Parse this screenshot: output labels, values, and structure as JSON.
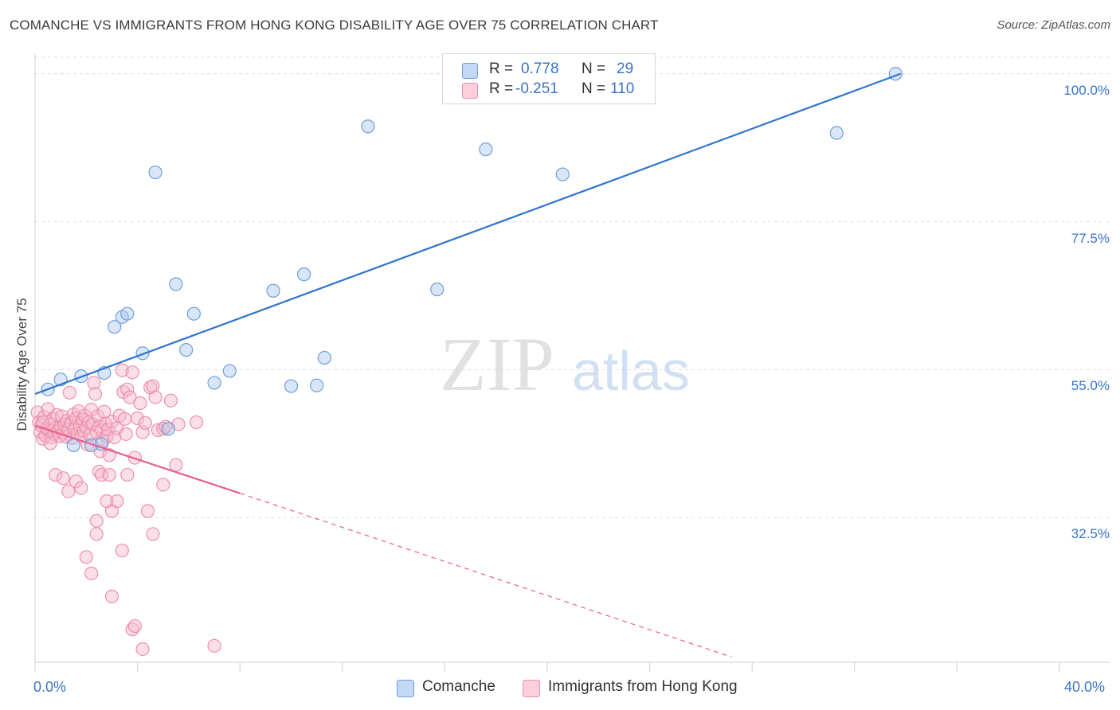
{
  "header": {
    "title": "COMANCHE VS IMMIGRANTS FROM HONG KONG DISABILITY AGE OVER 75 CORRELATION CHART",
    "source": "Source: ZipAtlas.com"
  },
  "watermark": {
    "zip": "ZIP",
    "atlas": "atlas"
  },
  "legend": {
    "r_label": "R =",
    "n_label": "N =",
    "rows": [
      {
        "r": "0.778",
        "n": "29"
      },
      {
        "r": "-0.251",
        "n": "110"
      }
    ]
  },
  "colors": {
    "comanche_fill": "#aac8f0",
    "comanche_stroke": "#6f9fd8",
    "comanche_line": "#2f74d0",
    "hk_fill": "#f7b9cb",
    "hk_stroke": "#ec8fab",
    "hk_line": "#e8608e",
    "grid": "#dddddd",
    "axis_text": "#3a73c8"
  },
  "chart_data": {
    "type": "scatter",
    "title": "COMANCHE VS IMMIGRANTS FROM HONG KONG DISABILITY AGE OVER 75 CORRELATION CHART",
    "xlabel": "",
    "ylabel": "Disability Age Over 75",
    "x_tick_labels": [
      "0.0%",
      "40.0%"
    ],
    "y_tick_labels": [
      "100.0%",
      "77.5%",
      "55.0%",
      "32.5%"
    ],
    "xlim": [
      0,
      40
    ],
    "ylim": [
      10.5,
      102.5
    ],
    "grid": true,
    "series": [
      {
        "name": "Comanche",
        "R": 0.778,
        "N": 29,
        "trend": {
          "x": [
            0,
            33.8
          ],
          "y": [
            51.3,
            100.0
          ],
          "dashed_to": null
        },
        "points": [
          [
            0.5,
            52.0
          ],
          [
            1.0,
            53.5
          ],
          [
            1.8,
            54.0
          ],
          [
            2.7,
            54.5
          ],
          [
            3.1,
            61.5
          ],
          [
            3.4,
            63.0
          ],
          [
            3.6,
            63.5
          ],
          [
            4.2,
            57.5
          ],
          [
            4.7,
            85.0
          ],
          [
            5.2,
            46.0
          ],
          [
            5.5,
            68.0
          ],
          [
            5.9,
            58.0
          ],
          [
            6.2,
            63.5
          ],
          [
            7.0,
            53.0
          ],
          [
            7.6,
            54.8
          ],
          [
            9.3,
            67.0
          ],
          [
            10.0,
            52.5
          ],
          [
            10.5,
            69.5
          ],
          [
            11.0,
            52.6
          ],
          [
            11.3,
            56.8
          ],
          [
            13.0,
            92.0
          ],
          [
            15.7,
            67.2
          ],
          [
            17.6,
            88.5
          ],
          [
            20.6,
            84.7
          ],
          [
            31.3,
            91.0
          ],
          [
            33.6,
            100.0
          ],
          [
            1.5,
            43.5
          ],
          [
            2.2,
            43.5
          ],
          [
            2.6,
            43.7
          ]
        ]
      },
      {
        "name": "Immigrants from Hong Kong",
        "R": -0.251,
        "N": 110,
        "trend": {
          "x": [
            0,
            8.0
          ],
          "y": [
            46.5,
            36.2
          ],
          "dashed_to": [
            27.2,
            11.3
          ]
        },
        "points": [
          [
            0.1,
            48.5
          ],
          [
            0.15,
            47.0
          ],
          [
            0.2,
            45.5
          ],
          [
            0.25,
            46.5
          ],
          [
            0.3,
            44.5
          ],
          [
            0.35,
            47.8
          ],
          [
            0.4,
            45.0
          ],
          [
            0.45,
            46.0
          ],
          [
            0.5,
            49.0
          ],
          [
            0.55,
            45.8
          ],
          [
            0.6,
            46.8
          ],
          [
            0.65,
            44.7
          ],
          [
            0.7,
            47.5
          ],
          [
            0.75,
            45.2
          ],
          [
            0.8,
            46.1
          ],
          [
            0.85,
            48.1
          ],
          [
            0.9,
            45.6
          ],
          [
            0.95,
            44.9
          ],
          [
            1.0,
            46.3
          ],
          [
            1.05,
            47.9
          ],
          [
            1.1,
            45.4
          ],
          [
            1.15,
            46.6
          ],
          [
            1.2,
            44.8
          ],
          [
            1.25,
            47.2
          ],
          [
            1.3,
            45.9
          ],
          [
            1.35,
            51.5
          ],
          [
            1.4,
            46.9
          ],
          [
            1.45,
            44.6
          ],
          [
            1.5,
            48.2
          ],
          [
            1.55,
            46.0
          ],
          [
            1.6,
            47.6
          ],
          [
            1.65,
            45.3
          ],
          [
            1.7,
            48.7
          ],
          [
            1.75,
            46.4
          ],
          [
            1.8,
            44.9
          ],
          [
            1.85,
            47.4
          ],
          [
            1.9,
            45.7
          ],
          [
            1.95,
            48.0
          ],
          [
            2.0,
            46.2
          ],
          [
            2.05,
            43.6
          ],
          [
            2.1,
            47.0
          ],
          [
            2.15,
            45.1
          ],
          [
            2.2,
            48.9
          ],
          [
            2.25,
            46.7
          ],
          [
            2.3,
            53.0
          ],
          [
            2.35,
            51.3
          ],
          [
            2.4,
            45.5
          ],
          [
            2.45,
            47.9
          ],
          [
            2.5,
            46.3
          ],
          [
            2.55,
            42.6
          ],
          [
            2.6,
            45.8
          ],
          [
            2.65,
            44.2
          ],
          [
            2.7,
            48.6
          ],
          [
            2.75,
            46.8
          ],
          [
            2.8,
            44.8
          ],
          [
            2.85,
            45.9
          ],
          [
            2.9,
            42.0
          ],
          [
            3.0,
            47.1
          ],
          [
            3.1,
            44.7
          ],
          [
            3.2,
            46.1
          ],
          [
            3.3,
            48.0
          ],
          [
            3.4,
            54.9
          ],
          [
            3.45,
            51.6
          ],
          [
            3.5,
            47.5
          ],
          [
            3.55,
            45.2
          ],
          [
            3.6,
            52.0
          ],
          [
            3.7,
            50.8
          ],
          [
            3.8,
            54.6
          ],
          [
            3.9,
            41.6
          ],
          [
            4.0,
            47.6
          ],
          [
            4.1,
            49.9
          ],
          [
            4.2,
            45.5
          ],
          [
            4.3,
            46.9
          ],
          [
            4.5,
            52.3
          ],
          [
            4.6,
            52.5
          ],
          [
            4.7,
            50.8
          ],
          [
            4.8,
            45.8
          ],
          [
            5.0,
            46.0
          ],
          [
            5.1,
            46.3
          ],
          [
            5.3,
            50.3
          ],
          [
            5.5,
            40.5
          ],
          [
            5.6,
            46.7
          ],
          [
            6.3,
            47.0
          ],
          [
            0.8,
            39.0
          ],
          [
            1.1,
            38.5
          ],
          [
            1.3,
            36.5
          ],
          [
            1.6,
            38.0
          ],
          [
            1.8,
            37.0
          ],
          [
            2.0,
            26.5
          ],
          [
            2.2,
            24.0
          ],
          [
            2.4,
            30.0
          ],
          [
            2.5,
            39.5
          ],
          [
            2.6,
            39.0
          ],
          [
            2.8,
            35.0
          ],
          [
            2.9,
            39.0
          ],
          [
            3.0,
            33.5
          ],
          [
            3.2,
            35.0
          ],
          [
            3.4,
            27.5
          ],
          [
            3.6,
            39.0
          ],
          [
            3.8,
            15.5
          ],
          [
            4.2,
            12.5
          ],
          [
            4.4,
            33.5
          ],
          [
            4.6,
            30.0
          ],
          [
            5.0,
            37.5
          ],
          [
            7.0,
            13.0
          ],
          [
            3.0,
            20.5
          ],
          [
            2.4,
            32.0
          ],
          [
            3.9,
            16.0
          ],
          [
            0.3,
            47.0
          ],
          [
            0.6,
            43.8
          ]
        ]
      }
    ]
  },
  "bottom_legend": [
    {
      "label": "Comanche"
    },
    {
      "label": "Immigrants from Hong Kong"
    }
  ]
}
